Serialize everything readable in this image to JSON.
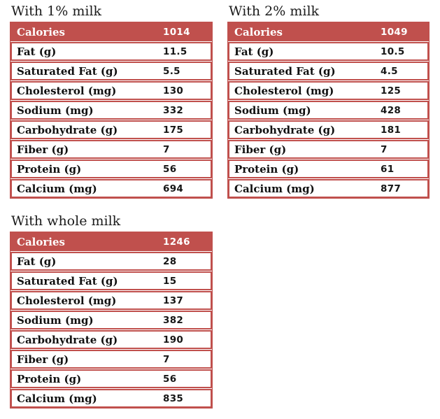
{
  "colors": {
    "accent": "#C0504D",
    "row_background": "#FFFFFF",
    "label_text": "#101010",
    "header_text": "#FFFFFF",
    "title_text": "#1B1B1B"
  },
  "chart_data": [
    {
      "type": "table",
      "title": "With 1% milk",
      "rows": [
        {
          "label": "Calories",
          "value": "1014"
        },
        {
          "label": "Fat (g)",
          "value": "11.5"
        },
        {
          "label": "Saturated Fat (g)",
          "value": "5.5"
        },
        {
          "label": "Cholesterol (mg)",
          "value": "130"
        },
        {
          "label": "Sodium (mg)",
          "value": "332"
        },
        {
          "label": "Carbohydrate (g)",
          "value": "175"
        },
        {
          "label": "Fiber (g)",
          "value": "7"
        },
        {
          "label": "Protein (g)",
          "value": "56"
        },
        {
          "label": "Calcium (mg)",
          "value": "694"
        }
      ]
    },
    {
      "type": "table",
      "title": "With 2% milk",
      "rows": [
        {
          "label": "Calories",
          "value": "1049"
        },
        {
          "label": "Fat (g)",
          "value": "10.5"
        },
        {
          "label": "Saturated Fat (g)",
          "value": "4.5"
        },
        {
          "label": "Cholesterol (mg)",
          "value": "125"
        },
        {
          "label": "Sodium (mg)",
          "value": "428"
        },
        {
          "label": "Carbohydrate (g)",
          "value": "181"
        },
        {
          "label": "Fiber (g)",
          "value": "7"
        },
        {
          "label": "Protein (g)",
          "value": "61"
        },
        {
          "label": "Calcium (mg)",
          "value": "877"
        }
      ]
    },
    {
      "type": "table",
      "title": "With whole milk",
      "rows": [
        {
          "label": "Calories",
          "value": "1246"
        },
        {
          "label": "Fat (g)",
          "value": "28"
        },
        {
          "label": "Saturated Fat (g)",
          "value": "15"
        },
        {
          "label": "Cholesterol (mg)",
          "value": "137"
        },
        {
          "label": "Sodium (mg)",
          "value": "382"
        },
        {
          "label": "Carbohydrate (g)",
          "value": "190"
        },
        {
          "label": "Fiber (g)",
          "value": "7"
        },
        {
          "label": "Protein (g)",
          "value": "56"
        },
        {
          "label": "Calcium (mg)",
          "value": "835"
        }
      ]
    }
  ]
}
